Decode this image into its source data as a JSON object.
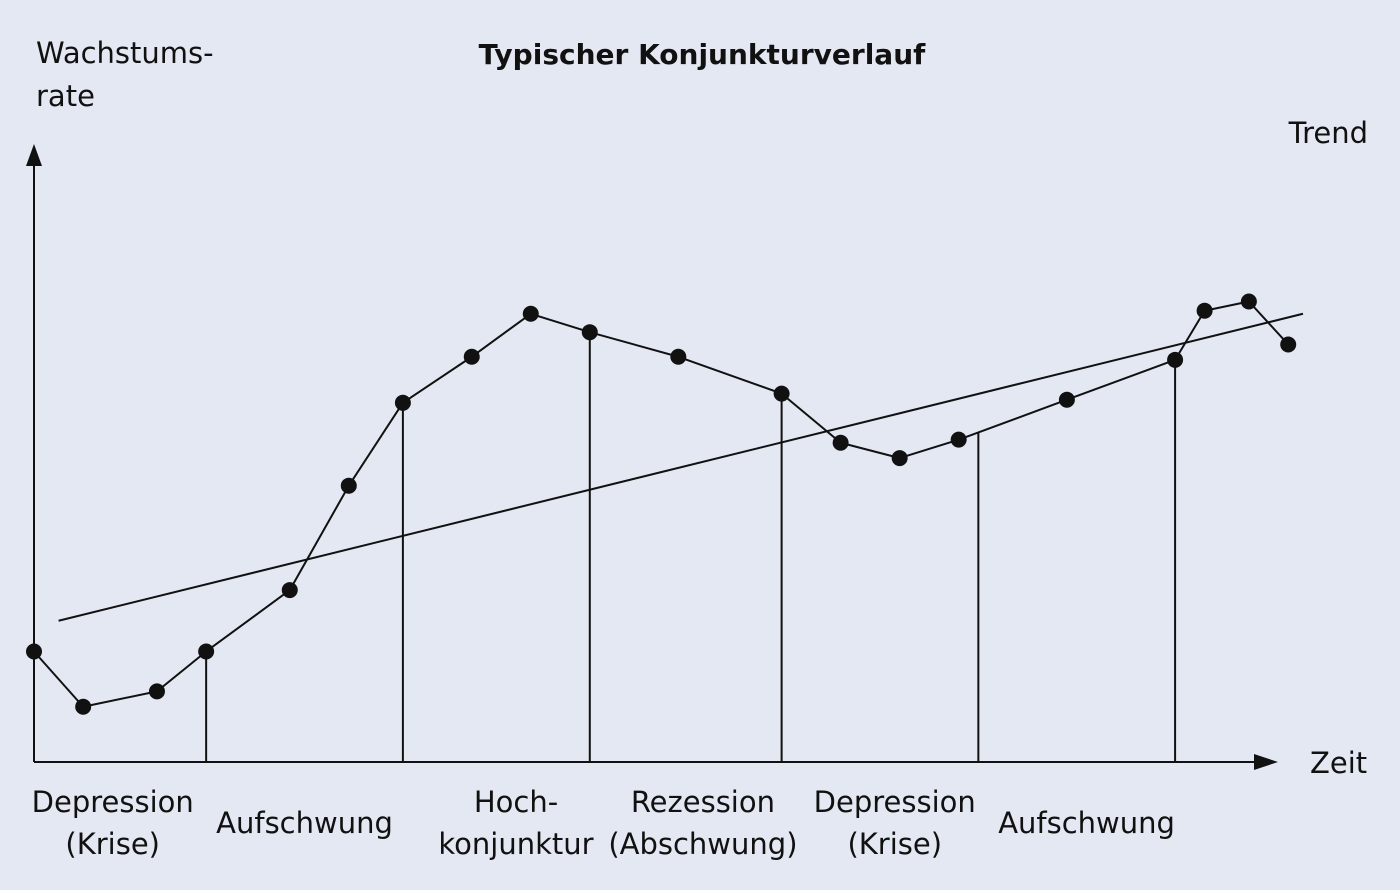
{
  "chart_data": {
    "type": "line",
    "title": "Typischer Konjunkturverlauf",
    "ylabel": [
      "Wachstums-",
      "rate"
    ],
    "xlabel": "Zeit",
    "trend_label": "Trend",
    "xlim": [
      0,
      27
    ],
    "ylim": [
      0,
      100
    ],
    "series": [
      {
        "name": "",
        "x": [
          0,
          1,
          2.5,
          3.5,
          5.2,
          6.4,
          7.5,
          8.9,
          10.1,
          11.3,
          13.1,
          15.2,
          16.4,
          17.6,
          18.8,
          21,
          23.2,
          23.8,
          24.7,
          25.5
        ],
        "y": [
          18,
          9,
          11.5,
          18,
          28,
          45,
          58.5,
          66,
          73,
          70,
          66,
          60,
          52,
          49.5,
          52.5,
          59,
          65.5,
          73.5,
          75,
          68
        ]
      }
    ],
    "trend": {
      "x": [
        0.5,
        25.8
      ],
      "y": [
        23,
        73
      ]
    },
    "phase_boundaries": [
      3.5,
      7.5,
      11.3,
      15.2,
      19.2,
      23.2
    ],
    "phases": [
      {
        "lines": [
          "Depression",
          "(Krise)"
        ],
        "x": 1.6
      },
      {
        "lines": [
          "Aufschwung"
        ],
        "x": 5.5
      },
      {
        "lines": [
          "Hoch-",
          "konjunktur"
        ],
        "x": 9.8
      },
      {
        "lines": [
          "Rezession",
          "(Abschwung)"
        ],
        "x": 13.6
      },
      {
        "lines": [
          "Depression",
          "(Krise)"
        ],
        "x": 17.5
      },
      {
        "lines": [
          "Aufschwung"
        ],
        "x": 21.4
      }
    ]
  }
}
